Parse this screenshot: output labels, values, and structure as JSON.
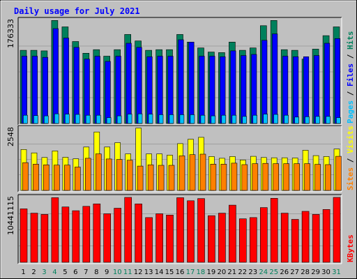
{
  "chart_data": {
    "type": "bar",
    "title": "Daily usage for July 2021",
    "x": [
      "1",
      "2",
      "3",
      "4",
      "5",
      "6",
      "7",
      "8",
      "9",
      "10",
      "11",
      "12",
      "13",
      "14",
      "15",
      "16",
      "17",
      "18",
      "19",
      "20",
      "21",
      "22",
      "23",
      "24",
      "25",
      "26",
      "27",
      "28",
      "29",
      "30",
      "31"
    ],
    "weekend_days": [
      "3",
      "4",
      "10",
      "11",
      "17",
      "18",
      "24",
      "25",
      "31"
    ],
    "panels": [
      {
        "id": "top",
        "ymax_label": "176333",
        "ymax": 176333,
        "series": [
          {
            "name": "Hits",
            "color": "#00805c",
            "values": [
              125000,
              125000,
              124000,
              176000,
              165000,
              140000,
              120000,
              126000,
              115000,
              126000,
              152000,
              141000,
              125000,
              126000,
              126000,
              152000,
              139000,
              129000,
              122000,
              121000,
              139000,
              125000,
              129000,
              167000,
              176000,
              126000,
              125000,
              110000,
              127000,
              150000,
              165000
            ]
          },
          {
            "name": "Files",
            "color": "#0000ff",
            "values": [
              115000,
              115000,
              113000,
              162000,
              146000,
              130000,
              110000,
              115000,
              106000,
              115000,
              137000,
              130000,
              114000,
              115000,
              115000,
              143000,
              139000,
              115000,
              115000,
              114000,
              124000,
              116000,
              118000,
              142000,
              153000,
              115000,
              114000,
              114000,
              116000,
              137000,
              145000
            ]
          },
          {
            "name": "Pages",
            "color": "#00c0ff",
            "values": [
              14000,
              13500,
              13000,
              16500,
              16000,
              15500,
              14000,
              14000,
              10000,
              13000,
              16000,
              16500,
              16000,
              15000,
              15000,
              15000,
              15000,
              14000,
              13000,
              14000,
              14000,
              12000,
              14000,
              16000,
              15500,
              14000,
              11000,
              11500,
              12000,
              12000,
              10000
            ]
          }
        ],
        "legend": [
          "Pages",
          "Files",
          "Hits"
        ]
      },
      {
        "id": "middle",
        "ymax_label": "2548",
        "ymax": 2548,
        "series": [
          {
            "name": "Visits",
            "color": "#ffff00",
            "values": [
              1680,
              1540,
              1350,
              1620,
              1360,
              1300,
              1780,
              2400,
              1780,
              1960,
              1500,
              2560,
              1500,
              1500,
              1450,
              1920,
              2100,
              2180,
              1390,
              1320,
              1390,
              1250,
              1400,
              1350,
              1340,
              1340,
              1330,
              1650,
              1430,
              1390,
              1700
            ]
          },
          {
            "name": "Sites",
            "color": "#ff8000",
            "values": [
              1140,
              1080,
              1050,
              1040,
              1040,
              960,
              1320,
              1500,
              1290,
              1270,
              1240,
              1000,
              1050,
              1030,
              1030,
              1420,
              1470,
              1490,
              1080,
              1080,
              1120,
              1060,
              1100,
              1110,
              1100,
              1100,
              1100,
              1100,
              1070,
              1060,
              1400
            ]
          }
        ],
        "legend": [
          "Sites",
          "Visits"
        ]
      },
      {
        "id": "bottom",
        "ymax_label": "10441115",
        "ymax": 10441115,
        "series": [
          {
            "name": "KBytes",
            "color": "#ff0000",
            "values": [
              8600000,
              7900000,
              7700000,
              10400000,
              8900000,
              8300000,
              9000000,
              9400000,
              7800000,
              8700000,
              10440000,
              9400000,
              7200000,
              7800000,
              7600000,
              10400000,
              9900000,
              10250000,
              7500000,
              7900000,
              9200000,
              7000000,
              7200000,
              8800000,
              10300000,
              7900000,
              6900000,
              8200000,
              7700000,
              8500000,
              10440000
            ]
          }
        ],
        "legend": [
          "KBytes"
        ]
      }
    ]
  }
}
